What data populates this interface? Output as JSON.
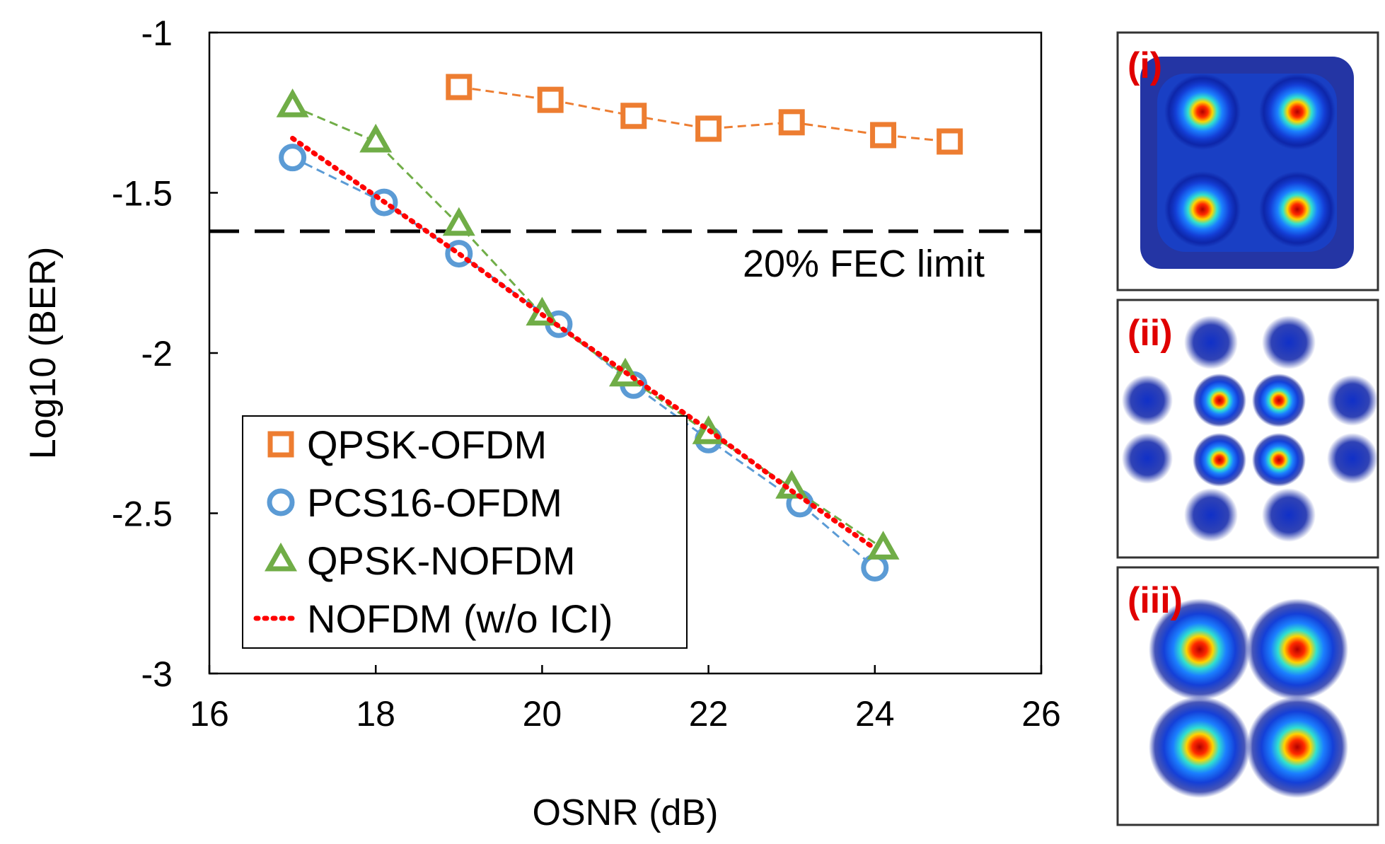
{
  "chart_data": {
    "type": "line",
    "title": "",
    "xlabel": "OSNR (dB)",
    "ylabel": "Log10 (BER)",
    "xlim": [
      16,
      26
    ],
    "ylim": [
      -3,
      -1
    ],
    "xticks": [
      "16",
      "18",
      "20",
      "22",
      "24",
      "26"
    ],
    "yticks": [
      "-1",
      "-1.5",
      "-2",
      "-2.5",
      "-3"
    ],
    "legend_position": "lower-left",
    "series": [
      {
        "name": "QPSK-OFDM",
        "marker": "square",
        "line": "dashed",
        "color": "#ed7d31",
        "x": [
          19.0,
          20.1,
          21.1,
          22.0,
          23.0,
          24.1,
          24.9
        ],
        "y": [
          -1.17,
          -1.21,
          -1.26,
          -1.3,
          -1.28,
          -1.32,
          -1.34
        ]
      },
      {
        "name": "PCS16-OFDM",
        "marker": "circle",
        "line": "dashed",
        "color": "#5b9bd5",
        "x": [
          17.0,
          18.1,
          19.0,
          20.2,
          21.1,
          22.0,
          23.1,
          24.0
        ],
        "y": [
          -1.39,
          -1.53,
          -1.69,
          -1.91,
          -2.1,
          -2.27,
          -2.47,
          -2.67
        ]
      },
      {
        "name": "QPSK-NOFDM",
        "marker": "triangle",
        "line": "dashed",
        "color": "#70ad47",
        "x": [
          17.0,
          18.0,
          19.0,
          20.0,
          21.0,
          22.0,
          23.0,
          24.1
        ],
        "y": [
          -1.23,
          -1.34,
          -1.6,
          -1.88,
          -2.07,
          -2.25,
          -2.42,
          -2.61
        ]
      },
      {
        "name": "NOFDM (w/o ICI)",
        "marker": "none",
        "line": "dotted",
        "color": "#ff0000",
        "x": [
          17.0,
          18.0,
          19.0,
          20.0,
          21.0,
          22.0,
          23.0,
          24.0
        ],
        "y": [
          -1.33,
          -1.51,
          -1.69,
          -1.88,
          -2.06,
          -2.24,
          -2.43,
          -2.61
        ]
      }
    ],
    "annotations": {
      "fec_limit_value": -1.62,
      "fec_limit_label": "20% FEC limit"
    },
    "constellations": [
      {
        "label": "(i)"
      },
      {
        "label": "(ii)"
      },
      {
        "label": "(iii)"
      }
    ]
  }
}
